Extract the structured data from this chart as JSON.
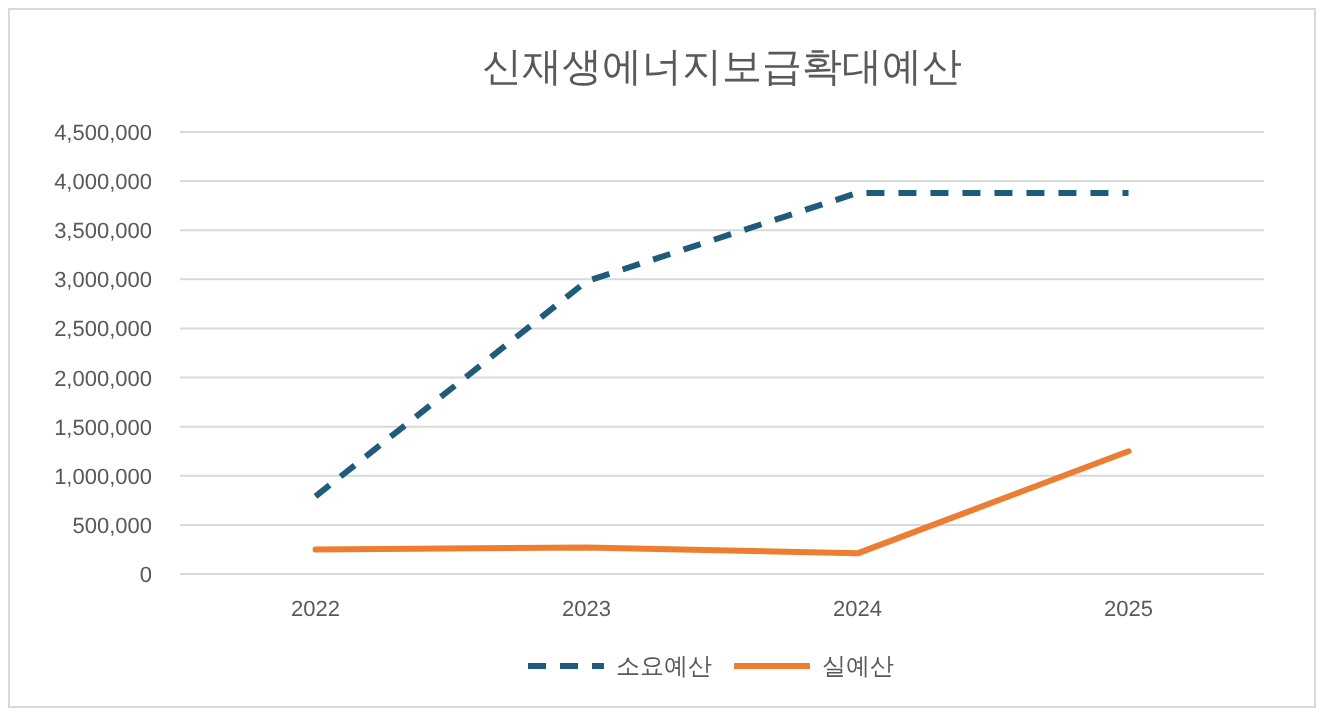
{
  "chart_data": {
    "type": "line",
    "title": "신재생에너지보급확대예산",
    "categories": [
      "2022",
      "2023",
      "2024",
      "2025"
    ],
    "series": [
      {
        "name": "소요예산",
        "color": "#1f5b7a",
        "line_style": "dashed",
        "values": [
          790000,
          2980000,
          3880000,
          3880000
        ]
      },
      {
        "name": "실예산",
        "color": "#ed7d31",
        "line_style": "solid",
        "values": [
          250000,
          270000,
          210000,
          1250000
        ]
      }
    ],
    "ylim": [
      0,
      4500000
    ],
    "yticks": [
      {
        "value": 0,
        "label": "0"
      },
      {
        "value": 500000,
        "label": "500,000"
      },
      {
        "value": 1000000,
        "label": "1,000,000"
      },
      {
        "value": 1500000,
        "label": "1,500,000"
      },
      {
        "value": 2000000,
        "label": "2,000,000"
      },
      {
        "value": 2500000,
        "label": "2,500,000"
      },
      {
        "value": 3000000,
        "label": "3,000,000"
      },
      {
        "value": 3500000,
        "label": "3,500,000"
      },
      {
        "value": 4000000,
        "label": "4,000,000"
      },
      {
        "value": 4500000,
        "label": "4,500,000"
      }
    ],
    "grid": "y",
    "legend": "bottom"
  }
}
